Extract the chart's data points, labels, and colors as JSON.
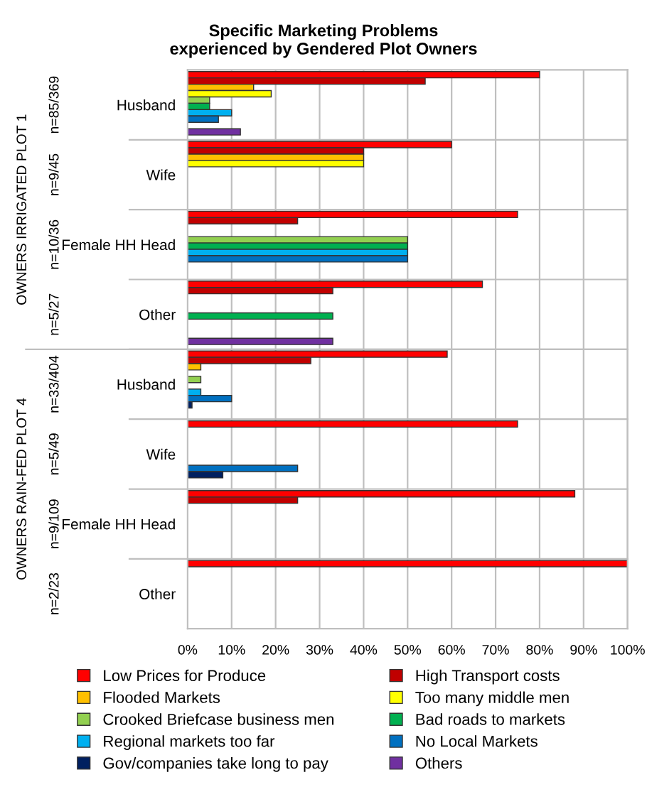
{
  "chart_data": {
    "type": "bar",
    "orientation": "horizontal",
    "title": "Specific Marketing Problems\nexperienced by Gendered Plot Owners",
    "categories": [
      "Husband",
      "Wife",
      "Female HH Head",
      "Other",
      "Husband",
      "Wife",
      "Female HH Head",
      "Other"
    ],
    "annotations": [
      "n=85/369",
      "n=9/45",
      "n=10/36",
      "n=5/27",
      "n=33/404",
      "n=5/49",
      "n=9/109",
      "n=2/23",
      "OWNERS IRRIGATED PLOT 1",
      "OWNERS RAIN-FED PLOT 4"
    ],
    "series": [
      {
        "name": "Low Prices for Produce",
        "color": "#ff0000",
        "values": [
          80,
          60,
          75,
          67,
          59,
          75,
          88,
          100
        ]
      },
      {
        "name": "High Transport costs",
        "color": "#c00000",
        "values": [
          54,
          40,
          25,
          33,
          28,
          null,
          25,
          null
        ]
      },
      {
        "name": "Flooded Markets",
        "color": "#ffc000",
        "values": [
          15,
          40,
          null,
          null,
          3,
          null,
          null,
          null
        ]
      },
      {
        "name": "Too many middle men",
        "color": "#ffff00",
        "values": [
          19,
          40,
          null,
          null,
          null,
          null,
          null,
          null
        ]
      },
      {
        "name": "Crooked Briefcase business men",
        "color": "#92d050",
        "values": [
          5,
          null,
          50,
          null,
          3,
          null,
          null,
          null
        ]
      },
      {
        "name": "Bad roads to markets",
        "color": "#00b050",
        "values": [
          5,
          null,
          50,
          33,
          null,
          null,
          null,
          null
        ]
      },
      {
        "name": "Regional markets too far",
        "color": "#00b0f0",
        "values": [
          10,
          null,
          50,
          null,
          3,
          null,
          null,
          null
        ]
      },
      {
        "name": "No Local Markets",
        "color": "#0070c0",
        "values": [
          7,
          null,
          50,
          null,
          10,
          25,
          null,
          null
        ]
      },
      {
        "name": "Gov/companies take long to pay",
        "color": "#002060",
        "values": [
          null,
          null,
          null,
          null,
          1,
          8,
          null,
          null
        ]
      },
      {
        "name": "Others",
        "color": "#7030a0",
        "values": [
          12,
          null,
          null,
          33,
          null,
          null,
          null,
          null
        ]
      }
    ],
    "xlim": [
      0,
      100
    ],
    "xticks": [
      {
        "value": 0,
        "label": "0%"
      },
      {
        "value": 10,
        "label": "10%"
      },
      {
        "value": 20,
        "label": "20%"
      },
      {
        "value": 30,
        "label": "30%"
      },
      {
        "value": 40,
        "label": "40%"
      },
      {
        "value": 50,
        "label": "50%"
      },
      {
        "value": 60,
        "label": "60%"
      },
      {
        "value": 70,
        "label": "70%"
      },
      {
        "value": 80,
        "label": "80%"
      },
      {
        "value": 90,
        "label": "90%"
      },
      {
        "value": 100,
        "label": "100%"
      }
    ],
    "grid": "x",
    "legend": "bottom"
  }
}
